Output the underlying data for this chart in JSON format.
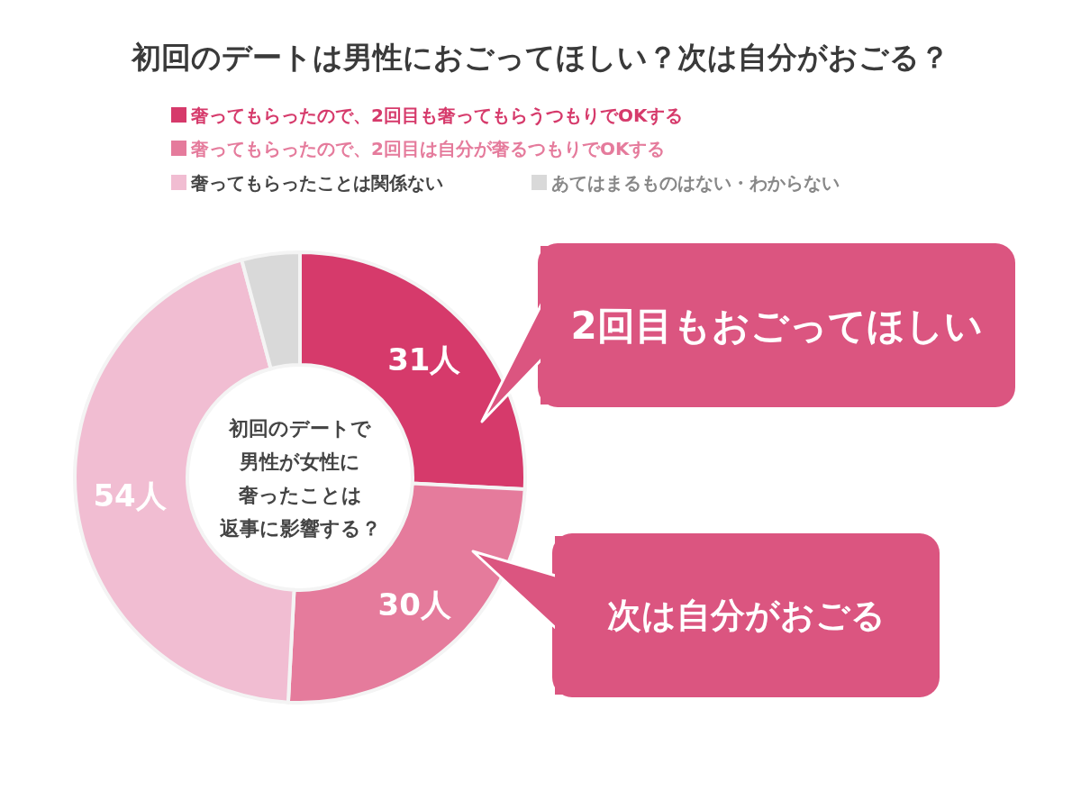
{
  "chart_data": {
    "type": "donut",
    "title": "初回のデートは男性におごってほしい？次は自分がおごる？",
    "categories": [
      "奢ってもらったので、2回目も奢ってもらうつもりでOKする",
      "奢ってもらったので、2回目は自分が奢るつもりでOKする",
      "奢ってもらったことは関係ない",
      "あてはまるものはない・わからない"
    ],
    "values": [
      31,
      30,
      54,
      5
    ],
    "colors": [
      "#d63a6b",
      "#e57b9c",
      "#f1bdd2",
      "#d9d9d9"
    ],
    "value_labels": [
      "31人",
      "30人",
      "54人",
      null
    ],
    "legend": "top",
    "annotations": [
      "初回のデートで",
      "男性が女性に",
      "奢ったことは",
      "返事に影響する？",
      "2回目もおごってほしい",
      "次は自分がおごる"
    ]
  }
}
